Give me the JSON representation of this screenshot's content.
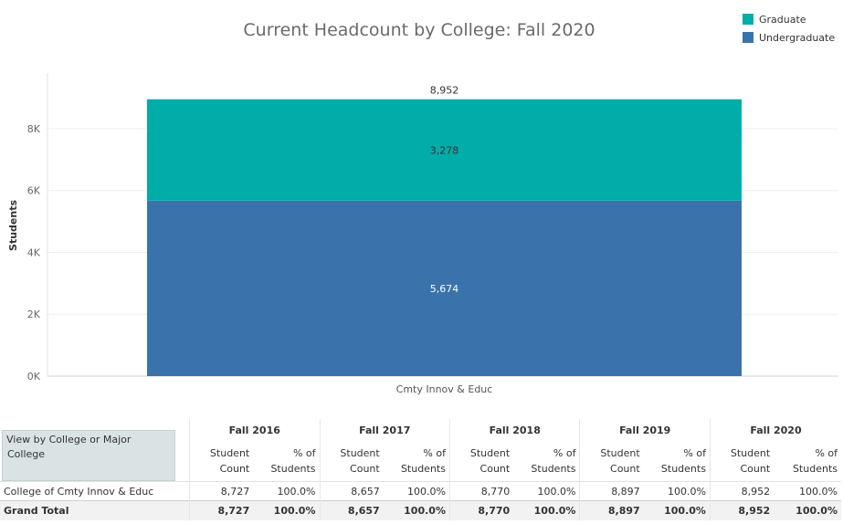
{
  "chart_data": {
    "type": "bar",
    "stacked": true,
    "title": "Current Headcount by College: Fall 2020",
    "ylabel": "Students",
    "xlabel": "",
    "categories": [
      "Cmty Innov & Educ"
    ],
    "series": [
      {
        "name": "Undergraduate",
        "values": [
          5674
        ],
        "labels": [
          "5,674"
        ],
        "color": "#3a73ac"
      },
      {
        "name": "Graduate",
        "values": [
          3278
        ],
        "labels": [
          "3,278"
        ],
        "color": "#00ada9"
      }
    ],
    "totals": [
      "8,952"
    ],
    "ylim": [
      0,
      9800
    ],
    "yticks": [
      0,
      2000,
      4000,
      6000,
      8000
    ],
    "ytick_labels": [
      "0K",
      "2K",
      "4K",
      "6K",
      "8K"
    ],
    "grid": true,
    "legend_position": "top-right"
  },
  "legend": [
    {
      "label": "Graduate",
      "color": "#00ada9"
    },
    {
      "label": "Undergraduate",
      "color": "#3a73ac"
    }
  ],
  "control": {
    "title": "View by College or Major",
    "value": "College"
  },
  "table": {
    "years": [
      "Fall 2016",
      "Fall 2017",
      "Fall 2018",
      "Fall 2019",
      "Fall 2020"
    ],
    "sub_count": [
      "Student",
      "Count"
    ],
    "sub_pct": [
      "% of",
      "Students"
    ],
    "rows": [
      {
        "label": "College of Cmty Innov & Educ",
        "cells": [
          [
            "8,727",
            "100.0%"
          ],
          [
            "8,657",
            "100.0%"
          ],
          [
            "8,770",
            "100.0%"
          ],
          [
            "8,897",
            "100.0%"
          ],
          [
            "8,952",
            "100.0%"
          ]
        ]
      }
    ],
    "total": {
      "label": "Grand Total",
      "cells": [
        [
          "8,727",
          "100.0%"
        ],
        [
          "8,657",
          "100.0%"
        ],
        [
          "8,770",
          "100.0%"
        ],
        [
          "8,897",
          "100.0%"
        ],
        [
          "8,952",
          "100.0%"
        ]
      ]
    }
  }
}
